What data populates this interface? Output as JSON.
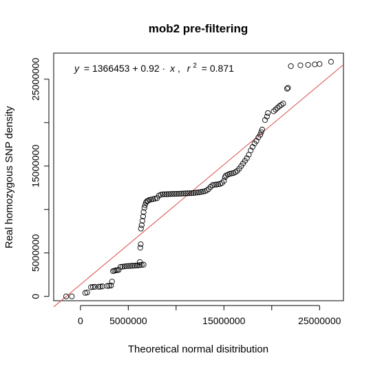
{
  "chart_data": {
    "type": "scatter",
    "title": "mob2 pre-filtering",
    "xlabel": "Theoretical normal disitribution",
    "ylabel": "Real homozygous SNP density",
    "xlim": [
      -2800000,
      27500000
    ],
    "ylim": [
      -500000,
      28000000
    ],
    "x_ticks": [
      0,
      5000000,
      10000000,
      15000000,
      20000000,
      25000000
    ],
    "x_tick_labels": [
      "0",
      "5000000",
      "",
      "15000000",
      "",
      "25000000"
    ],
    "y_ticks": [
      0,
      5000000,
      10000000,
      15000000,
      20000000,
      25000000
    ],
    "y_tick_labels": [
      "0",
      "5000000",
      "",
      "15000000",
      "",
      "25000000"
    ],
    "annotation": {
      "y_var": "y",
      "equals": "= 1366453 + 0.92 ·",
      "x_var": "x",
      "comma": ",",
      "r_var": "r",
      "r_exp": "2",
      "r_value": "= 0.871"
    },
    "regression": {
      "intercept": 1366453,
      "slope": 0.92,
      "color": "#d94a4a"
    },
    "point_color": "#000000",
    "points": [
      [
        -1500000,
        0
      ],
      [
        -900000,
        0
      ],
      [
        500000,
        400000
      ],
      [
        700000,
        450000
      ],
      [
        1100000,
        1050000
      ],
      [
        1300000,
        1080000
      ],
      [
        1500000,
        1100000
      ],
      [
        1900000,
        1100000
      ],
      [
        2100000,
        1120000
      ],
      [
        2300000,
        1150000
      ],
      [
        2800000,
        1200000
      ],
      [
        3000000,
        1220000
      ],
      [
        3200000,
        1250000
      ],
      [
        3300000,
        1700000
      ],
      [
        3400000,
        2900000
      ],
      [
        3550000,
        2950000
      ],
      [
        3700000,
        3000000
      ],
      [
        3850000,
        3020000
      ],
      [
        4000000,
        3050000
      ],
      [
        4200000,
        3400000
      ],
      [
        4400000,
        3420000
      ],
      [
        4600000,
        3450000
      ],
      [
        4800000,
        3480000
      ],
      [
        5000000,
        3500000
      ],
      [
        5200000,
        3500000
      ],
      [
        5400000,
        3520000
      ],
      [
        5600000,
        3530000
      ],
      [
        5800000,
        3550000
      ],
      [
        6000000,
        3560000
      ],
      [
        6200000,
        3600000
      ],
      [
        6400000,
        3620000
      ],
      [
        6600000,
        3650000
      ],
      [
        6200000,
        3950000
      ],
      [
        6250000,
        5600000
      ],
      [
        6300000,
        6000000
      ],
      [
        6320000,
        7800000
      ],
      [
        6400000,
        8200000
      ],
      [
        6480000,
        8700000
      ],
      [
        6550000,
        9200000
      ],
      [
        6600000,
        9700000
      ],
      [
        6680000,
        10200000
      ],
      [
        6750000,
        10500000
      ],
      [
        6850000,
        10800000
      ],
      [
        6950000,
        10950000
      ],
      [
        7050000,
        11000000
      ],
      [
        7200000,
        11100000
      ],
      [
        7400000,
        11150000
      ],
      [
        7600000,
        11200000
      ],
      [
        7800000,
        11250000
      ],
      [
        8000000,
        11300000
      ],
      [
        8200000,
        11600000
      ],
      [
        8400000,
        11700000
      ],
      [
        8600000,
        11750000
      ],
      [
        8800000,
        11750000
      ],
      [
        9000000,
        11760000
      ],
      [
        9200000,
        11770000
      ],
      [
        9400000,
        11780000
      ],
      [
        9600000,
        11790000
      ],
      [
        9800000,
        11800000
      ],
      [
        10000000,
        11800000
      ],
      [
        10200000,
        11810000
      ],
      [
        10400000,
        11820000
      ],
      [
        10600000,
        11830000
      ],
      [
        10800000,
        11840000
      ],
      [
        11000000,
        11850000
      ],
      [
        11200000,
        11860000
      ],
      [
        11400000,
        11870000
      ],
      [
        11600000,
        11880000
      ],
      [
        11800000,
        11900000
      ],
      [
        12000000,
        11920000
      ],
      [
        12200000,
        11950000
      ],
      [
        12400000,
        11980000
      ],
      [
        12600000,
        12020000
      ],
      [
        12800000,
        12060000
      ],
      [
        13000000,
        12100000
      ],
      [
        13200000,
        12200000
      ],
      [
        13400000,
        12350000
      ],
      [
        13600000,
        12600000
      ],
      [
        13800000,
        12800000
      ],
      [
        14000000,
        12850000
      ],
      [
        14200000,
        12870000
      ],
      [
        14400000,
        12900000
      ],
      [
        14600000,
        12950000
      ],
      [
        14800000,
        13050000
      ],
      [
        15000000,
        13300000
      ],
      [
        15100000,
        13700000
      ],
      [
        15200000,
        13900000
      ],
      [
        15400000,
        14000000
      ],
      [
        15600000,
        14100000
      ],
      [
        15800000,
        14150000
      ],
      [
        16000000,
        14200000
      ],
      [
        16200000,
        14300000
      ],
      [
        16400000,
        14450000
      ],
      [
        16600000,
        14700000
      ],
      [
        16800000,
        15000000
      ],
      [
        17000000,
        15300000
      ],
      [
        17200000,
        15600000
      ],
      [
        17400000,
        15900000
      ],
      [
        17600000,
        16300000
      ],
      [
        17800000,
        16800000
      ],
      [
        18000000,
        17200000
      ],
      [
        18200000,
        17600000
      ],
      [
        18400000,
        17900000
      ],
      [
        18600000,
        18300000
      ],
      [
        18800000,
        18600000
      ],
      [
        18900000,
        18900000
      ],
      [
        19000000,
        19200000
      ],
      [
        19300000,
        20300000
      ],
      [
        19500000,
        20700000
      ],
      [
        19600000,
        21100000
      ],
      [
        20200000,
        21300000
      ],
      [
        20400000,
        21500000
      ],
      [
        20600000,
        21700000
      ],
      [
        20800000,
        21900000
      ],
      [
        21000000,
        22050000
      ],
      [
        21200000,
        22200000
      ],
      [
        21600000,
        23900000
      ],
      [
        21700000,
        24000000
      ],
      [
        22000000,
        26500000
      ],
      [
        23000000,
        26600000
      ],
      [
        23800000,
        26650000
      ],
      [
        24500000,
        26700000
      ],
      [
        25000000,
        26750000
      ],
      [
        26200000,
        27000000
      ]
    ]
  }
}
